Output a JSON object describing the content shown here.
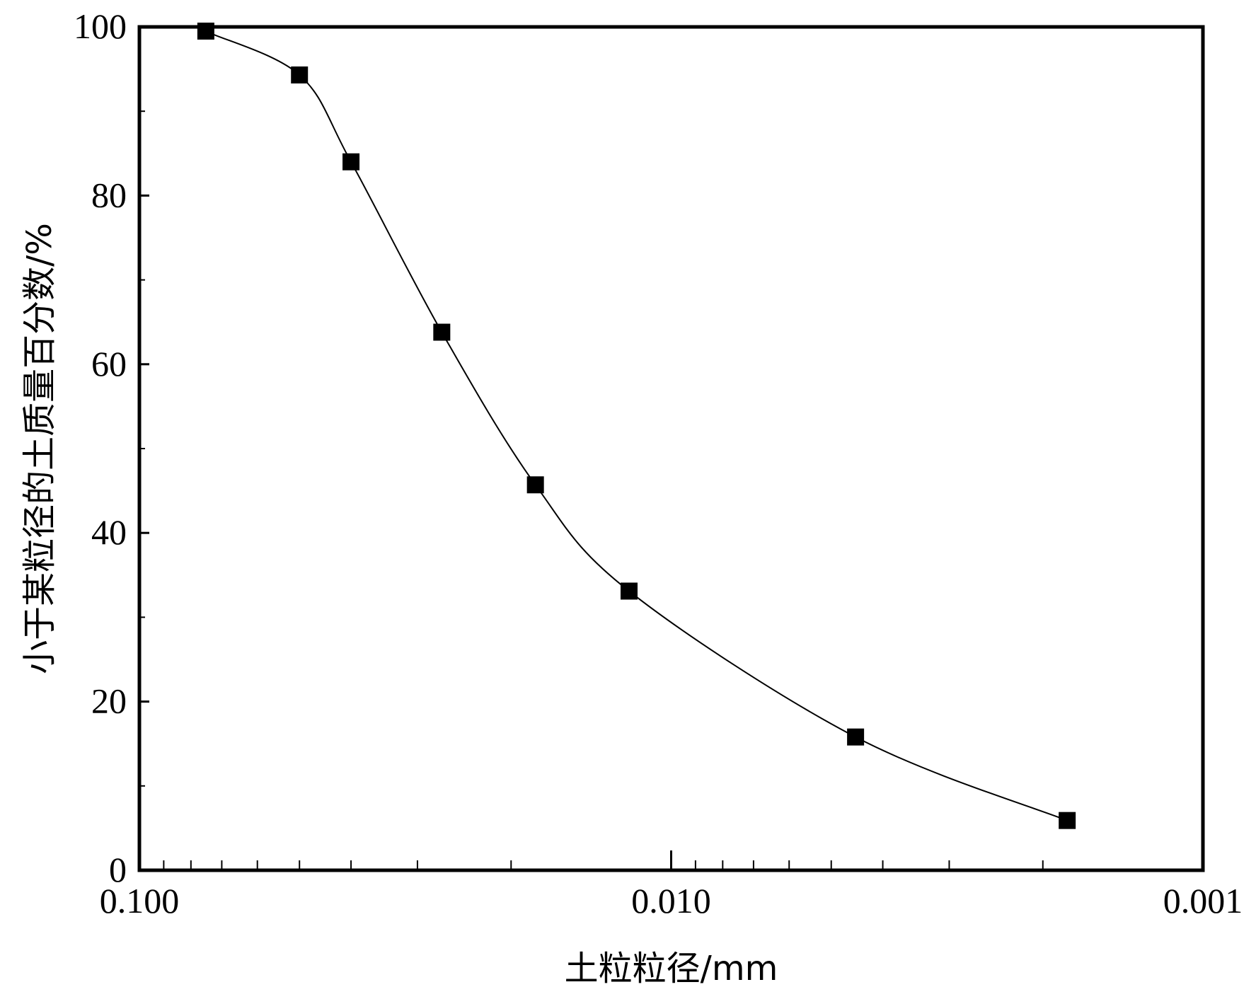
{
  "chart_data": {
    "type": "scatter",
    "title": "",
    "xlabel": "土粒粒径/mm",
    "ylabel": "小于某粒径的土质量百分数/%",
    "x_scale": "log",
    "x_reversed": true,
    "xlim": [
      0.1,
      0.001
    ],
    "ylim": [
      0,
      100
    ],
    "x_ticks": [
      "0.100",
      "0.010",
      "0.001"
    ],
    "y_ticks": [
      "0",
      "20",
      "40",
      "60",
      "80",
      "100"
    ],
    "grid": false,
    "legend": "none",
    "colors": {
      "axis": "#000000",
      "marker": "#000000",
      "curve": "#000000"
    },
    "series": [
      {
        "points": [
          {
            "x": 0.075,
            "y": 99.5
          },
          {
            "x": 0.05,
            "y": 94.3
          },
          {
            "x": 0.04,
            "y": 84.0
          },
          {
            "x": 0.027,
            "y": 63.8
          },
          {
            "x": 0.018,
            "y": 45.7
          },
          {
            "x": 0.012,
            "y": 33.1
          },
          {
            "x": 0.0045,
            "y": 15.8
          },
          {
            "x": 0.0018,
            "y": 5.9
          }
        ]
      }
    ]
  }
}
